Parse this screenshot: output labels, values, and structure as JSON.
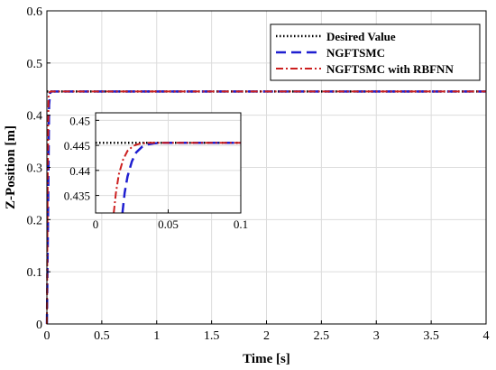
{
  "chart_data": [
    {
      "type": "line",
      "title": "",
      "xlabel": "Time [s]",
      "ylabel": "Z-Position [m]",
      "xlim": [
        0,
        4
      ],
      "ylim": [
        0,
        0.6
      ],
      "xticks": [
        0,
        0.5,
        1,
        1.5,
        2,
        2.5,
        3,
        3.5,
        4
      ],
      "xtick_labels": [
        "0",
        "0.5",
        "1",
        "1.5",
        "2",
        "2.5",
        "3",
        "3.5",
        "4"
      ],
      "yticks": [
        0,
        0.1,
        0.2,
        0.3,
        0.4,
        0.5,
        0.6
      ],
      "ytick_labels": [
        "0",
        "0.1",
        "0.2",
        "0.3",
        "0.4",
        "0.5",
        "0.6"
      ],
      "grid": true,
      "legend_position": "top-right",
      "series": [
        {
          "name": "Desired Value",
          "color": "#000000",
          "style": "dotted",
          "x": [
            0,
            4
          ],
          "y": [
            0.4455,
            0.4455
          ]
        },
        {
          "name": "NGFTSMC",
          "color": "#1f1fd0",
          "style": "dashed",
          "x": [
            0,
            0.01,
            0.02,
            0.03,
            0.04,
            0.05,
            4
          ],
          "y": [
            0,
            0.2,
            0.42,
            0.443,
            0.4453,
            0.4455,
            0.4455
          ]
        },
        {
          "name": "NGFTSMC with RBFNN",
          "color": "#cc1f1f",
          "style": "dashdot",
          "x": [
            0,
            0.008,
            0.015,
            0.025,
            0.035,
            0.05,
            4
          ],
          "y": [
            0,
            0.3,
            0.435,
            0.4445,
            0.4454,
            0.4455,
            0.4455
          ]
        }
      ]
    },
    {
      "type": "line",
      "title": "",
      "xlabel": "",
      "ylabel": "",
      "xlim": [
        0,
        0.1
      ],
      "ylim": [
        0.4315,
        0.4515
      ],
      "xticks": [
        0,
        0.05,
        0.1
      ],
      "xtick_labels": [
        "0",
        "0.05",
        "0.1"
      ],
      "yticks": [
        0.435,
        0.44,
        0.445,
        0.45
      ],
      "ytick_labels": [
        "0.435",
        "0.44",
        "0.445",
        "0.45"
      ],
      "grid": true,
      "series": [
        {
          "name": "Desired Value",
          "color": "#000000",
          "style": "dotted",
          "x": [
            0,
            0.1
          ],
          "y": [
            0.4455,
            0.4455
          ]
        },
        {
          "name": "NGFTSMC",
          "color": "#1f1fd0",
          "style": "dashed",
          "x": [
            0.0185,
            0.02,
            0.022,
            0.025,
            0.028,
            0.032,
            0.036,
            0.04,
            0.045,
            0.1
          ],
          "y": [
            0.4315,
            0.4355,
            0.4388,
            0.4418,
            0.4436,
            0.4447,
            0.4452,
            0.4454,
            0.4455,
            0.4455
          ]
        },
        {
          "name": "NGFTSMC with RBFNN",
          "color": "#cc1f1f",
          "style": "dashdot",
          "x": [
            0.0125,
            0.014,
            0.016,
            0.019,
            0.022,
            0.026,
            0.03,
            0.035,
            0.04,
            0.1
          ],
          "y": [
            0.4315,
            0.4355,
            0.4392,
            0.4422,
            0.4439,
            0.4449,
            0.4453,
            0.4455,
            0.4455,
            0.4455
          ]
        }
      ]
    }
  ]
}
